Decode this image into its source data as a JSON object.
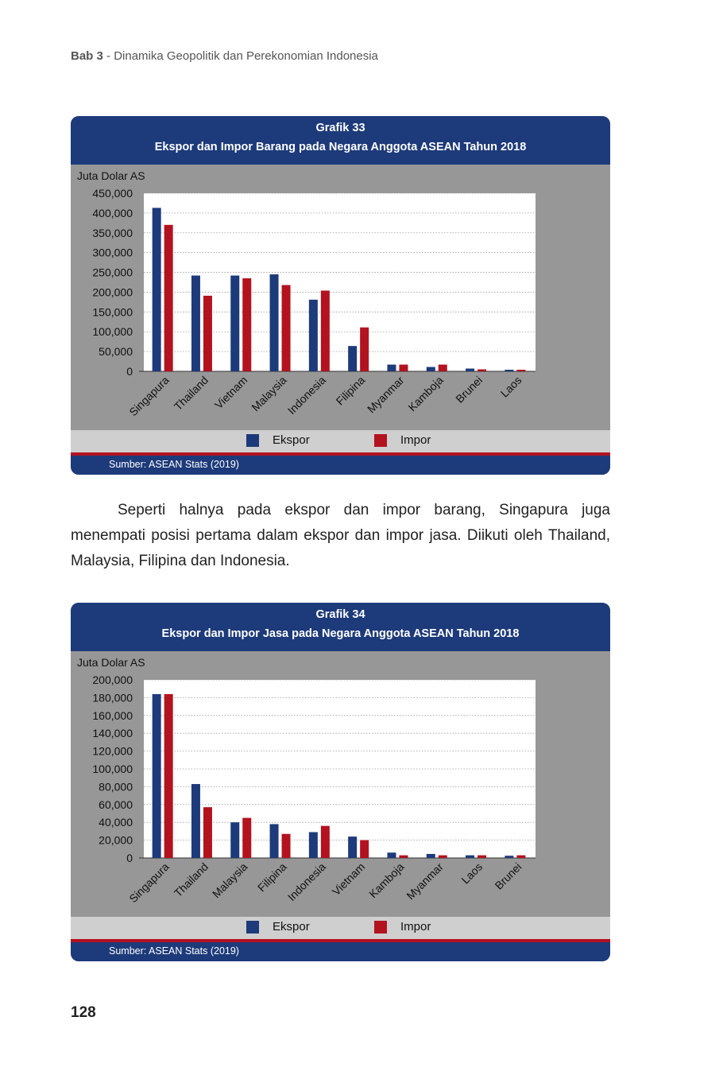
{
  "header": {
    "chapter": "Bab 3",
    "separator": " - ",
    "title": "Dinamika Geopolitik dan Perekonomian Indonesia"
  },
  "paragraph": "Seperti halnya pada ekspor dan impor barang, Singapura juga menempati posisi pertama dalam ekspor dan impor jasa. Diikuti oleh Thailand, Malaysia, Filipina dan Indonesia.",
  "page_number": "128",
  "colors": {
    "header": "#1d3a7a",
    "ekspor": "#1d3a7a",
    "impor": "#b3121f",
    "frame": "#979797",
    "legend_bg": "#cfcfcf"
  },
  "chart_data": [
    {
      "type": "bar",
      "grafik_label": "Grafik 33",
      "title": "Ekspor dan Impor Barang pada Negara Anggota ASEAN Tahun 2018",
      "ylabel": "Juta Dolar AS",
      "ylim": [
        0,
        450000
      ],
      "ytick_step": 50000,
      "yticks": [
        "0",
        "50,000",
        "100,000",
        "150,000",
        "200,000",
        "250,000",
        "300,000",
        "350,000",
        "400,000",
        "450,000"
      ],
      "categories": [
        "Singapura",
        "Thailand",
        "Vietnam",
        "Malaysia",
        "Indonesia",
        "Filipina",
        "Myanmar",
        "Kamboja",
        "Brunei",
        "Laos"
      ],
      "series": [
        {
          "name": "Ekspor",
          "values": [
            413000,
            242000,
            242000,
            245000,
            181000,
            64000,
            17000,
            11000,
            7000,
            4000
          ]
        },
        {
          "name": "Impor",
          "values": [
            370000,
            191000,
            235000,
            218000,
            204000,
            111000,
            17000,
            17000,
            5000,
            4000
          ]
        }
      ],
      "grid": true,
      "legend": "bottom",
      "source": "Sumber: ASEAN Stats (2019)"
    },
    {
      "type": "bar",
      "grafik_label": "Grafik 34",
      "title": "Ekspor dan Impor Jasa pada Negara Anggota ASEAN Tahun 2018",
      "ylabel": "Juta Dolar AS",
      "ylim": [
        0,
        200000
      ],
      "ytick_step": 20000,
      "yticks": [
        "0",
        "20,000",
        "40,000",
        "60,000",
        "80,000",
        "100,000",
        "120,000",
        "140,000",
        "160,000",
        "180,000",
        "200,000"
      ],
      "categories": [
        "Singapura",
        "Thailand",
        "Malaysia",
        "Filipina",
        "Indonesia",
        "Vietnam",
        "Kamboja",
        "Myanmar",
        "Laos",
        "Brunei"
      ],
      "series": [
        {
          "name": "Ekspor",
          "values": [
            184000,
            83000,
            40000,
            38000,
            29000,
            24000,
            6000,
            4500,
            3000,
            2500
          ]
        },
        {
          "name": "Impor",
          "values": [
            184000,
            57000,
            45000,
            27000,
            36000,
            20000,
            3000,
            3000,
            3000,
            3000
          ]
        }
      ],
      "grid": true,
      "legend": "bottom",
      "source": "Sumber: ASEAN Stats (2019)"
    }
  ]
}
